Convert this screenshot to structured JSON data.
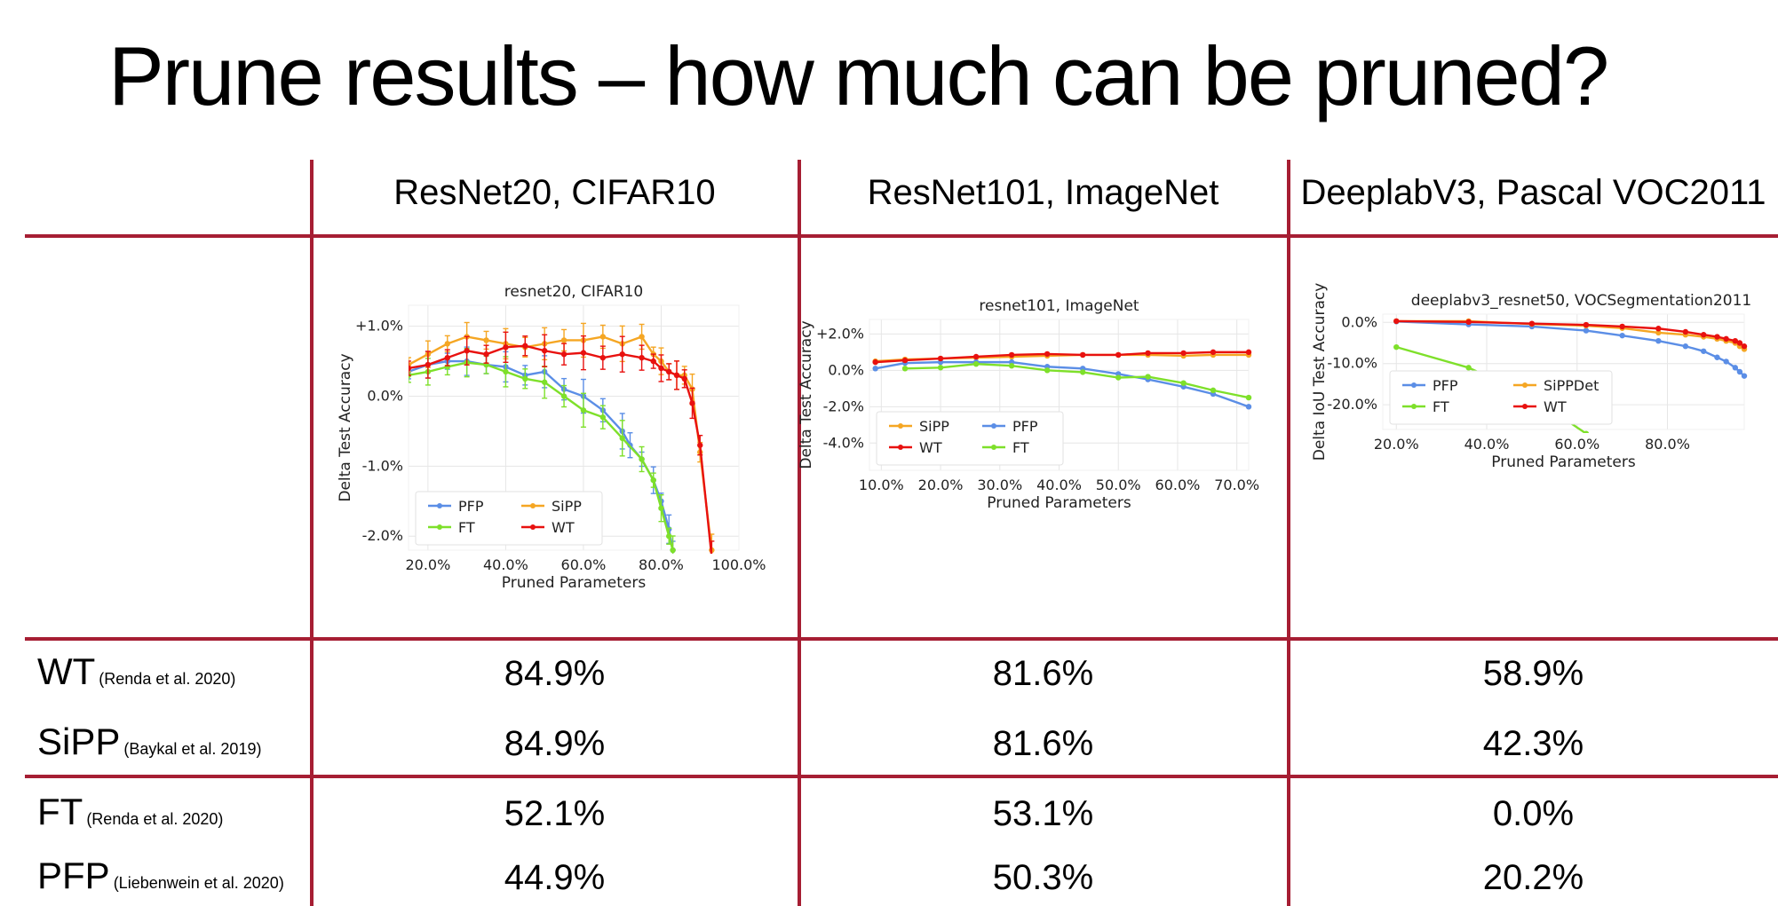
{
  "slide": {
    "title": "Prune results – how much can be pruned?"
  },
  "columns": [
    "ResNet20, CIFAR10",
    "ResNet101, ImageNet",
    "DeeplabV3, Pascal VOC2011"
  ],
  "rows": [
    {
      "method": "WT",
      "citation": "(Renda et al. 2020)",
      "values": [
        "84.9%",
        "81.6%",
        "58.9%"
      ]
    },
    {
      "method": "SiPP",
      "citation": "(Baykal et al. 2019)",
      "values": [
        "84.9%",
        "81.6%",
        "42.3%"
      ]
    },
    {
      "method": "FT",
      "citation": "(Renda et al. 2020)",
      "values": [
        "52.1%",
        "53.1%",
        "0.0%"
      ]
    },
    {
      "method": "PFP",
      "citation": "(Liebenwein et al. 2020)",
      "values": [
        "44.9%",
        "50.3%",
        "20.2%"
      ]
    }
  ],
  "colors": {
    "rule": "#a61e33",
    "PFP": "#5b8ee6",
    "SiPP": "#f5a623",
    "FT": "#7ee02a",
    "WT": "#e8110f"
  },
  "chart_data": [
    {
      "type": "line",
      "title": "resnet20, CIFAR10",
      "xlabel": "Pruned Parameters",
      "ylabel": "Delta Test Accuracy",
      "xlim": [
        15,
        100
      ],
      "ylim": [
        -2.2,
        1.3
      ],
      "xticks": [
        20,
        40,
        60,
        80,
        100
      ],
      "xtick_labels": [
        "20.0%",
        "40.0%",
        "60.0%",
        "80.0%",
        "100.0%"
      ],
      "yticks": [
        1,
        0,
        -1,
        -2
      ],
      "ytick_labels": [
        "+1.0%",
        "0.0%",
        "-1.0%",
        "-2.0%"
      ],
      "grid": true,
      "legend": "bottom-left",
      "series": [
        {
          "name": "PFP",
          "x": [
            15,
            20,
            25,
            30,
            35,
            40,
            45,
            50,
            55,
            60,
            65,
            70,
            72,
            75,
            78,
            80,
            82,
            83
          ],
          "y": [
            0.35,
            0.45,
            0.5,
            0.5,
            0.45,
            0.42,
            0.3,
            0.35,
            0.1,
            0.0,
            -0.2,
            -0.5,
            -0.7,
            -0.9,
            -1.2,
            -1.5,
            -1.9,
            -2.2
          ]
        },
        {
          "name": "SiPP",
          "x": [
            15,
            20,
            25,
            30,
            35,
            40,
            45,
            50,
            55,
            60,
            65,
            70,
            75,
            78,
            80,
            82,
            84,
            86,
            88,
            90,
            93
          ],
          "y": [
            0.45,
            0.6,
            0.75,
            0.85,
            0.8,
            0.75,
            0.7,
            0.75,
            0.8,
            0.8,
            0.85,
            0.75,
            0.85,
            0.6,
            0.5,
            0.35,
            0.3,
            0.3,
            0.1,
            -0.8,
            -2.2
          ]
        },
        {
          "name": "FT",
          "x": [
            15,
            20,
            25,
            30,
            35,
            40,
            45,
            50,
            55,
            60,
            65,
            70,
            75,
            78,
            80,
            82,
            83
          ],
          "y": [
            0.3,
            0.35,
            0.42,
            0.48,
            0.45,
            0.35,
            0.25,
            0.2,
            0.0,
            -0.2,
            -0.3,
            -0.6,
            -0.9,
            -1.2,
            -1.6,
            -2.0,
            -2.2
          ]
        },
        {
          "name": "WT",
          "x": [
            15,
            20,
            25,
            30,
            35,
            40,
            45,
            50,
            55,
            60,
            65,
            70,
            75,
            78,
            80,
            82,
            84,
            86,
            88,
            90,
            93
          ],
          "y": [
            0.4,
            0.45,
            0.55,
            0.65,
            0.6,
            0.7,
            0.72,
            0.65,
            0.6,
            0.62,
            0.55,
            0.6,
            0.55,
            0.5,
            0.4,
            0.35,
            0.3,
            0.25,
            -0.1,
            -0.7,
            -2.3
          ]
        }
      ]
    },
    {
      "type": "line",
      "title": "resnet101, ImageNet",
      "xlabel": "Pruned Parameters",
      "ylabel": "Delta Test Accuracy",
      "xlim": [
        8,
        72
      ],
      "ylim": [
        -5.5,
        2.8
      ],
      "xticks": [
        10,
        20,
        30,
        40,
        50,
        60,
        70
      ],
      "xtick_labels": [
        "10.0%",
        "20.0%",
        "30.0%",
        "40.0%",
        "50.0%",
        "60.0%",
        "70.0%"
      ],
      "yticks": [
        2,
        0,
        -2,
        -4
      ],
      "ytick_labels": [
        "+2.0%",
        "0.0%",
        "-2.0%",
        "-4.0%"
      ],
      "grid": true,
      "legend": "bottom-left",
      "series": [
        {
          "name": "SiPP",
          "x": [
            9,
            14,
            20,
            26,
            32,
            38,
            44,
            50,
            55,
            61,
            66,
            72
          ],
          "y": [
            0.5,
            0.6,
            0.65,
            0.7,
            0.75,
            0.8,
            0.85,
            0.85,
            0.85,
            0.8,
            0.85,
            0.85
          ]
        },
        {
          "name": "PFP",
          "x": [
            9,
            14,
            20,
            26,
            32,
            38,
            44,
            50,
            55,
            61,
            66,
            72
          ],
          "y": [
            0.1,
            0.4,
            0.45,
            0.45,
            0.45,
            0.2,
            0.1,
            -0.2,
            -0.5,
            -0.9,
            -1.3,
            -2.0
          ]
        },
        {
          "name": "WT",
          "x": [
            9,
            14,
            20,
            26,
            32,
            38,
            44,
            50,
            55,
            61,
            66,
            72
          ],
          "y": [
            0.45,
            0.55,
            0.65,
            0.75,
            0.85,
            0.9,
            0.85,
            0.85,
            0.95,
            0.95,
            1.0,
            1.0
          ]
        },
        {
          "name": "FT",
          "x": [
            14,
            20,
            26,
            32,
            38,
            44,
            50,
            55,
            61,
            66,
            72
          ],
          "y": [
            0.1,
            0.15,
            0.35,
            0.25,
            0.0,
            -0.1,
            -0.4,
            -0.35,
            -0.7,
            -1.1,
            -1.5
          ]
        }
      ]
    },
    {
      "type": "line",
      "title": "deeplabv3_resnet50, VOCSegmentation2011",
      "xlabel": "Pruned Parameters",
      "ylabel": "Delta IoU Test Accuracy",
      "xlim": [
        17,
        97
      ],
      "ylim": [
        -26,
        2
      ],
      "xticks": [
        20,
        40,
        60,
        80
      ],
      "xtick_labels": [
        "20.0%",
        "40.0%",
        "60.0%",
        "80.0%"
      ],
      "yticks": [
        0,
        -10,
        -20
      ],
      "ytick_labels": [
        "0.0%",
        "-10.0%",
        "-20.0%"
      ],
      "grid": true,
      "legend": "bottom-left",
      "series": [
        {
          "name": "PFP",
          "x": [
            20,
            36,
            50,
            62,
            70,
            78,
            84,
            88,
            91,
            93,
            95,
            96,
            97
          ],
          "y": [
            0.2,
            -0.5,
            -1.0,
            -2.0,
            -3.2,
            -4.5,
            -5.8,
            -7.0,
            -8.5,
            -9.5,
            -11.0,
            -12.0,
            -13.0
          ]
        },
        {
          "name": "SiPPDet",
          "x": [
            20,
            36,
            50,
            62,
            70,
            78,
            84,
            88,
            91,
            93,
            95,
            96,
            97
          ],
          "y": [
            0.3,
            0.3,
            -0.4,
            -0.8,
            -1.4,
            -2.5,
            -3.0,
            -3.5,
            -4.0,
            -4.5,
            -5.0,
            -5.8,
            -6.5
          ]
        },
        {
          "name": "FT",
          "x": [
            20,
            36,
            50,
            62
          ],
          "y": [
            -6.0,
            -11.0,
            -18.0,
            -27.0
          ]
        },
        {
          "name": "WT",
          "x": [
            20,
            36,
            50,
            62,
            70,
            78,
            84,
            88,
            91,
            93,
            95,
            96,
            97
          ],
          "y": [
            0.3,
            0.1,
            -0.3,
            -0.6,
            -1.0,
            -1.5,
            -2.3,
            -3.0,
            -3.5,
            -4.0,
            -4.5,
            -5.0,
            -5.8
          ]
        }
      ]
    }
  ]
}
